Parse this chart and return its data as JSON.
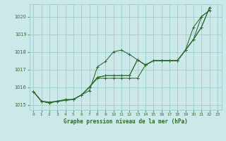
{
  "title": "Graphe pression niveau de la mer (hPa)",
  "bg_color": "#cce8e8",
  "grid_color": "#99cccc",
  "line_color": "#2d6a2d",
  "xlim": [
    -0.5,
    23.5
  ],
  "ylim": [
    1014.7,
    1020.7
  ],
  "yticks": [
    1015,
    1016,
    1017,
    1018,
    1019,
    1020
  ],
  "xticks": [
    0,
    1,
    2,
    3,
    4,
    5,
    6,
    7,
    8,
    9,
    10,
    11,
    12,
    13,
    14,
    15,
    16,
    17,
    18,
    19,
    20,
    21,
    22,
    23
  ],
  "series1_x": [
    0,
    1,
    2,
    3,
    4,
    5,
    6,
    7,
    8,
    9,
    10,
    11,
    12,
    13,
    14,
    15,
    16,
    17,
    18,
    19,
    20,
    21,
    22
  ],
  "series1_y": [
    1015.75,
    1015.2,
    1015.15,
    1015.2,
    1015.3,
    1015.3,
    1015.55,
    1015.8,
    1017.15,
    1017.45,
    1018.0,
    1018.1,
    1017.85,
    1017.55,
    1017.25,
    1017.5,
    1017.5,
    1017.5,
    1017.5,
    1018.1,
    1018.7,
    1020.0,
    1020.35
  ],
  "series2_x": [
    0,
    1,
    2,
    3,
    4,
    5,
    6,
    7,
    8,
    9,
    10,
    11,
    12,
    13,
    14,
    15,
    16,
    17,
    18,
    19,
    20,
    21,
    22
  ],
  "series2_y": [
    1015.75,
    1015.2,
    1015.1,
    1015.2,
    1015.25,
    1015.3,
    1015.55,
    1016.0,
    1016.55,
    1016.65,
    1016.65,
    1016.65,
    1016.65,
    1017.55,
    1017.25,
    1017.5,
    1017.5,
    1017.5,
    1017.5,
    1018.1,
    1019.4,
    1020.0,
    1020.35
  ],
  "series3_x": [
    0,
    1,
    2,
    3,
    4,
    5,
    6,
    7,
    8,
    9,
    10,
    11,
    12,
    13,
    14,
    15,
    16,
    17,
    18,
    19,
    20,
    21,
    22
  ],
  "series3_y": [
    1015.75,
    1015.2,
    1015.1,
    1015.2,
    1015.25,
    1015.3,
    1015.55,
    1016.0,
    1016.55,
    1016.65,
    1016.65,
    1016.65,
    1016.65,
    1017.55,
    1017.25,
    1017.5,
    1017.5,
    1017.5,
    1017.5,
    1018.1,
    1018.7,
    1019.4,
    1020.5
  ],
  "series4_x": [
    0,
    1,
    2,
    3,
    4,
    5,
    6,
    7,
    8,
    9,
    10,
    11,
    12,
    13,
    14,
    15,
    16,
    17,
    18,
    19,
    20,
    21,
    22
  ],
  "series4_y": [
    1015.75,
    1015.2,
    1015.1,
    1015.2,
    1015.25,
    1015.3,
    1015.55,
    1016.0,
    1016.5,
    1016.5,
    1016.5,
    1016.5,
    1016.5,
    1016.5,
    1017.25,
    1017.5,
    1017.5,
    1017.5,
    1017.5,
    1018.1,
    1018.7,
    1019.4,
    1020.5
  ]
}
